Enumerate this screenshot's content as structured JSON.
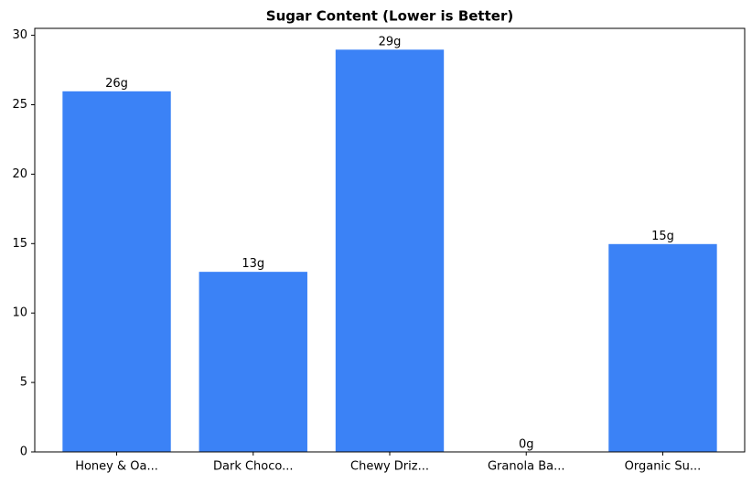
{
  "chart_data": {
    "type": "bar",
    "title": "Sugar Content (Lower is Better)",
    "categories": [
      "Honey & Oa...",
      "Dark Choco...",
      "Chewy Driz...",
      "Granola Ba...",
      "Organic Su..."
    ],
    "values": [
      26,
      13,
      29,
      0,
      15
    ],
    "value_labels": [
      "26g",
      "13g",
      "29g",
      "0g",
      "15g"
    ],
    "color": "#3b82f6",
    "ylim": [
      0,
      30.5
    ],
    "yticks": [
      0,
      5,
      10,
      15,
      20,
      25,
      30
    ],
    "grid": false
  }
}
